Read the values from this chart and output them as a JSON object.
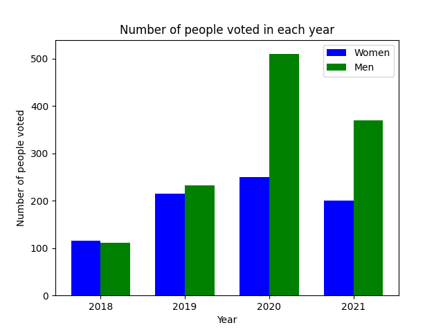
{
  "years": [
    "2018",
    "2019",
    "2020",
    "2021"
  ],
  "women": [
    115,
    215,
    250,
    201
  ],
  "men": [
    112,
    232,
    510,
    370
  ],
  "women_color": "#0000ff",
  "men_color": "#008000",
  "title": "Number of people voted in each year",
  "xlabel": "Year",
  "ylabel": "Number of people voted",
  "legend_labels": [
    "Women",
    "Men"
  ],
  "bar_width": 0.35,
  "ylim": [
    0,
    540
  ],
  "figsize": [
    6.4,
    4.8
  ],
  "dpi": 100
}
